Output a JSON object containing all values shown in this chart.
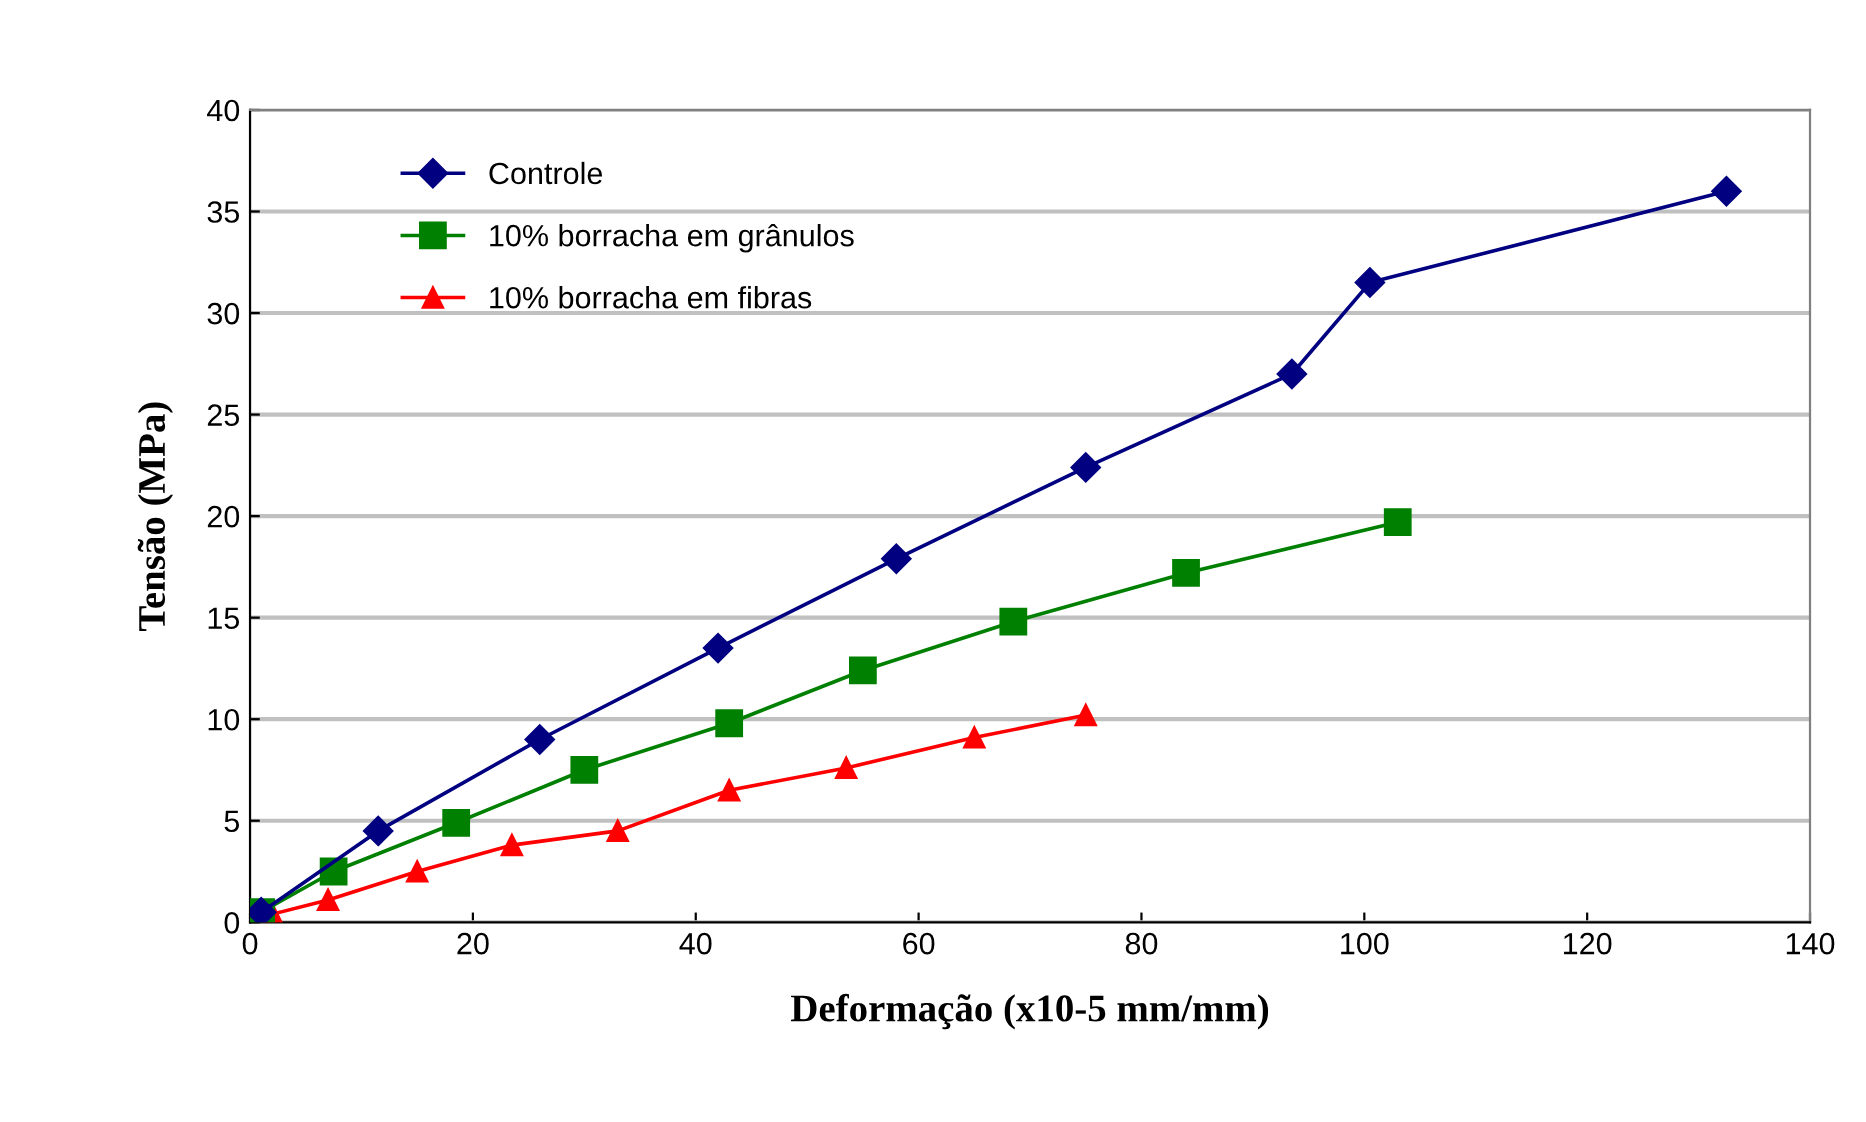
{
  "chart_data": {
    "type": "line",
    "xlabel": "Deformação (x10-5 mm/mm)",
    "ylabel": "Tensão (MPa)",
    "xlim": [
      0,
      140
    ],
    "xticks": [
      0,
      20,
      40,
      60,
      80,
      100,
      120,
      140
    ],
    "ylim": [
      0,
      40
    ],
    "yticks": [
      0,
      5,
      10,
      15,
      20,
      25,
      30,
      35,
      40
    ],
    "grid": "y",
    "legend": "top left",
    "series": [
      {
        "name": "Controle",
        "color": "#000080",
        "marker": "diamond",
        "x": [
          1,
          11.5,
          26,
          42,
          58,
          75,
          93.5,
          100.5,
          132.5
        ],
        "values": [
          0.5,
          4.5,
          9,
          13.5,
          17.9,
          22.4,
          27,
          31.5,
          36
        ]
      },
      {
        "name": "10% borracha em grânulos",
        "color": "#008000",
        "marker": "square",
        "x": [
          1,
          7.5,
          18.5,
          30,
          43,
          55,
          68.5,
          84,
          103
        ],
        "values": [
          0.5,
          2.5,
          4.9,
          7.5,
          9.8,
          12.4,
          14.8,
          17.2,
          19.7
        ]
      },
      {
        "name": "10% borracha em fibras",
        "color": "#ff0000",
        "marker": "triangle",
        "x": [
          2,
          7,
          15,
          23.5,
          33,
          43,
          53.5,
          65,
          75
        ],
        "values": [
          0.4,
          1.1,
          2.5,
          3.8,
          4.5,
          6.5,
          7.6,
          9.1,
          10.2
        ]
      }
    ]
  }
}
